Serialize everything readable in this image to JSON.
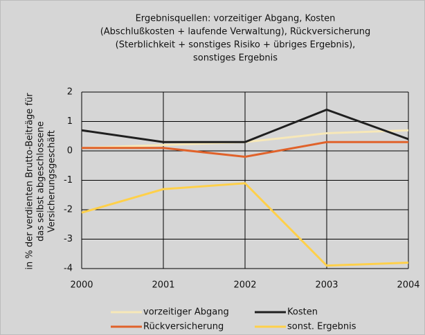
{
  "chart_data": {
    "type": "line",
    "title": [
      "Ergebnisquellen: vorzeitiger Abgang, Kosten",
      "(Abschlußkosten + laufende Verwaltung), Rückversicherung",
      "(Sterblichkeit + sonstiges Risiko + übriges Ergebnis),",
      "sonstiges Ergebnis"
    ],
    "y_label": [
      "in % der verdienten Brutto-Beiträge für",
      "das selbst abgeschlossene",
      "Versicherungsgeschäft"
    ],
    "x": [
      2000,
      2001,
      2002,
      2003,
      2004
    ],
    "xlim": [
      2000,
      2004
    ],
    "xticks": [
      2000,
      2001,
      2002,
      2003,
      2004
    ],
    "ylim": [
      -4,
      2
    ],
    "yticks": [
      -4,
      -3,
      -2,
      -1,
      0,
      1,
      2
    ],
    "grid": true,
    "series": [
      {
        "name": "vorzeitiger Abgang",
        "color": "#f7e8b8",
        "values": [
          0.1,
          0.2,
          0.3,
          0.6,
          0.7
        ]
      },
      {
        "name": "Kosten",
        "color": "#1f1f1f",
        "values": [
          0.7,
          0.3,
          0.3,
          1.4,
          0.4
        ]
      },
      {
        "name": "Rückversicherung",
        "color": "#e0622a",
        "values": [
          0.1,
          0.1,
          -0.2,
          0.3,
          0.3
        ]
      },
      {
        "name": "sonst. Ergebnis",
        "color": "#ffd04a",
        "values": [
          -2.1,
          -1.3,
          -1.1,
          -3.9,
          -3.8
        ]
      }
    ]
  }
}
